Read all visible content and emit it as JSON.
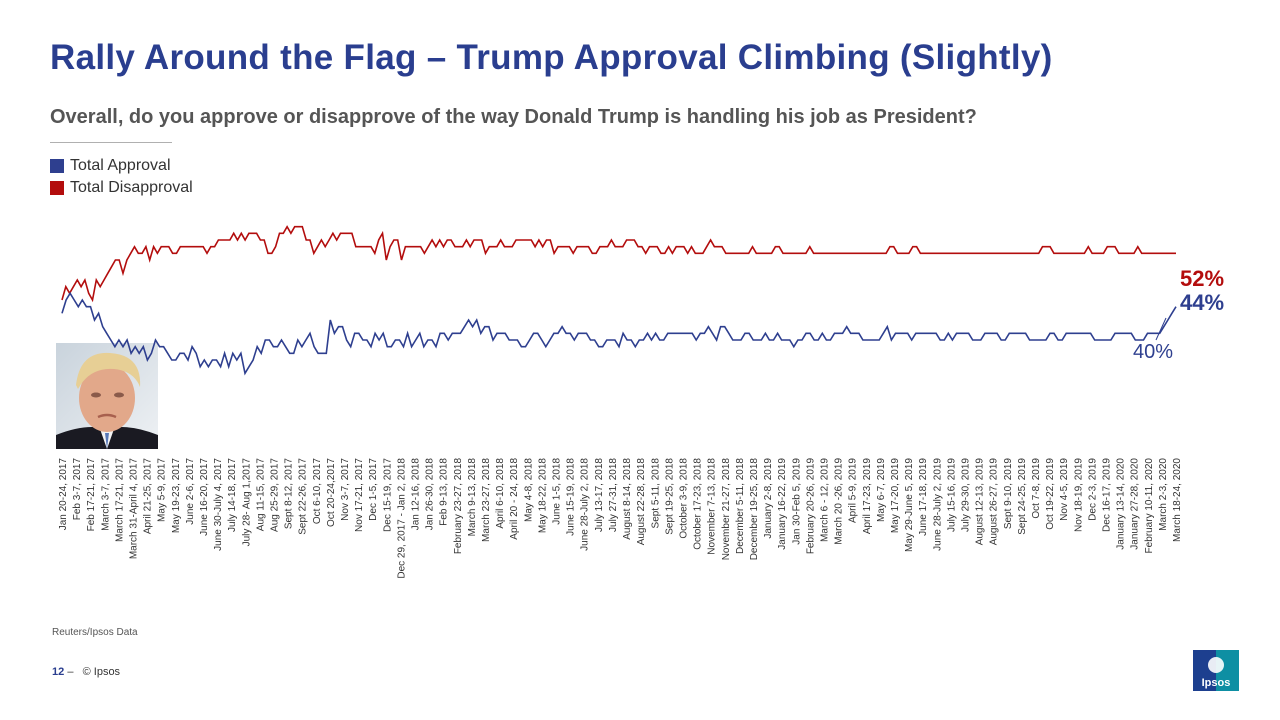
{
  "title": "Rally Around the Flag – Trump Approval Climbing (Slightly)",
  "subtitle": "Overall, do you approve or disapprove of the way Donald Trump is handling his job as President?",
  "colors": {
    "title": "#2a3e8f",
    "approval": "#2e3f8f",
    "disapproval": "#b30d0d"
  },
  "legend": [
    {
      "label": "Total Approval",
      "color": "#2e3f8f"
    },
    {
      "label": "Total Disapproval",
      "color": "#b30d0d"
    }
  ],
  "photo": {
    "icon": "trump-portrait"
  },
  "source": "Reuters/Ipsos Data",
  "footer": {
    "page": "12",
    "dash": "–",
    "copyright": "© Ipsos"
  },
  "logo": {
    "text": "Ipsos",
    "color": "#0e8fa3"
  },
  "chart_data": {
    "type": "line",
    "x_labels": [
      "Jan 20-24, 2017",
      "Feb 3-7, 2017",
      "Feb 17-21, 2017",
      "March 3-7, 2017",
      "March 17-21, 2017",
      "March 31-April 4, 2017",
      "April 21-25, 2017",
      "May 5-9, 2017",
      "May 19-23, 2017",
      "June 2-6, 2017",
      "June 16-20, 2017",
      "June 30-July 4, 2017",
      "July 14-18, 2017",
      "July 28- Aug 1,2017",
      "Aug 11-15, 2017",
      "Aug 25-29, 2017",
      "Sept 8-12, 2017",
      "Sept 22-26, 2017",
      "Oct 6-10, 2017",
      "Oct 20-24,2017",
      "Nov 3-7, 2017",
      "Nov 17-21, 2017",
      "Dec 1-5, 2017",
      "Dec 15-19, 2017",
      "Dec 29, 2017 - Jan 2, 2018",
      "Jan 12-16, 2018",
      "Jan 26-30, 2018",
      "Feb 9-13, 2018",
      "February 23-27, 2018",
      "March 9-13, 2018",
      "March 23-27, 2018",
      "April 6-10, 2018",
      "April 20 - 24, 2018",
      "May 4-8, 2018",
      "May 18-22, 2018",
      "June 1-5, 2018",
      "June 15-19, 2018",
      "June 28-July 2, 2018",
      "July 13-17, 2018",
      "July 27-31, 2018",
      "August 8-14, 2018",
      "August 22-28, 2018",
      "Sept 5-11, 2018",
      "Sept 19-25, 2018",
      "October 3-9, 2018",
      "October 17-23, 2018",
      "November 7-13, 2018",
      "November 21-27, 2018",
      "December 5-11, 2018",
      "December 19-25, 2018",
      "January 2-8, 2019",
      "January 16-22, 2019",
      "Jan 30-Feb 5, 2019",
      "February 20-26, 2019",
      "March 6 - 12, 2019",
      "March 20 -26, 2019",
      "April 5-9, 2019",
      "April 17-23, 2019",
      "May 6-7, 2019",
      "May 17-20, 2019",
      "May 29-June 5, 2019",
      "June 17-18, 2019",
      "June 28-July 2, 2019",
      "July 15-16, 2019",
      "July 29-30, 2019",
      "August 12-13, 2019",
      "August 26-27, 2019",
      "Sept 9-10, 2019",
      "Sept 24-25, 2019",
      "Oct 7-8, 2019",
      "Oct 19-22, 2019",
      "Nov 4-5, 2019",
      "Nov 18-19, 2019",
      "Dec 2-3, 2019",
      "Dec 16-17, 2019",
      "January 13-14, 2020",
      "January 27-28, 2020",
      "February 10-11, 2020",
      "March 2-3, 2020",
      "March 18-24, 2020"
    ],
    "series": [
      {
        "name": "Total Disapproval",
        "values": [
          45,
          47,
          46,
          47,
          48,
          47,
          48,
          46,
          45,
          48,
          47,
          48,
          49,
          50,
          51,
          51,
          49,
          51,
          52,
          53,
          52,
          52,
          53,
          51,
          53,
          52,
          53,
          53,
          53,
          52,
          52,
          53,
          53,
          53,
          53,
          53,
          53,
          53,
          52,
          53,
          53,
          54,
          54,
          54,
          54,
          55,
          54,
          55,
          54,
          55,
          55,
          55,
          54,
          54,
          52,
          52,
          53,
          55,
          55,
          56,
          55,
          56,
          56,
          56,
          54,
          54,
          52,
          53,
          54,
          53,
          54,
          55,
          54,
          55,
          55,
          55,
          55,
          53,
          53,
          53,
          53,
          53,
          52,
          54,
          55,
          51,
          53,
          54,
          54,
          51,
          53,
          53,
          53,
          53,
          53,
          52,
          53,
          54,
          53,
          54,
          53,
          54,
          54,
          53,
          53,
          53,
          54,
          53,
          54,
          54,
          54,
          52,
          53,
          53,
          53,
          54,
          53,
          53,
          53,
          54,
          54,
          54,
          54,
          54,
          53,
          54,
          53,
          54,
          54,
          52,
          53,
          53,
          53,
          53,
          52,
          53,
          53,
          53,
          53,
          52,
          52,
          53,
          53,
          53,
          54,
          53,
          53,
          53,
          54,
          54,
          54,
          53,
          53,
          52,
          53,
          53,
          53,
          52,
          52,
          53,
          52,
          53,
          53,
          53,
          52,
          53,
          52,
          52,
          52,
          53,
          54,
          53,
          53,
          53,
          52,
          52,
          52,
          52,
          52,
          52,
          52,
          53,
          52,
          52,
          52,
          52,
          52,
          53,
          53,
          52,
          52,
          52,
          52,
          52,
          52,
          52,
          53,
          52,
          52,
          52,
          52,
          52,
          52,
          52,
          52,
          52,
          52,
          52,
          52,
          52,
          52,
          52,
          52,
          52,
          52,
          52,
          52,
          53,
          53,
          52,
          52,
          52,
          52,
          53,
          53,
          52,
          52,
          52,
          52,
          52,
          52,
          52,
          52,
          52,
          52,
          52,
          52,
          52,
          52,
          52,
          52,
          52,
          52,
          52,
          52,
          52,
          52,
          52,
          52,
          52,
          52,
          52,
          52,
          52,
          52,
          52,
          52,
          53,
          53,
          53,
          52,
          52,
          52,
          52,
          52,
          52,
          52,
          52,
          52,
          53,
          52,
          52,
          52,
          52,
          53,
          53,
          53,
          52,
          52,
          52,
          52,
          52,
          53,
          52,
          52,
          52,
          52,
          52,
          52,
          52,
          52,
          52,
          52
        ]
      },
      {
        "name": "Total Approval",
        "values": [
          43,
          45,
          46,
          45,
          44,
          45,
          44,
          44,
          42,
          43,
          41,
          40,
          39,
          38,
          39,
          38,
          39,
          37,
          38,
          37,
          38,
          36,
          37,
          39,
          38,
          38,
          37,
          36,
          36,
          37,
          37,
          36,
          38,
          37,
          35,
          36,
          35,
          36,
          36,
          35,
          37,
          35,
          37,
          36,
          37,
          34,
          35,
          36,
          38,
          37,
          39,
          39,
          38,
          38,
          39,
          38,
          37,
          37,
          39,
          38,
          39,
          40,
          38,
          37,
          37,
          37,
          42,
          40,
          41,
          41,
          39,
          38,
          40,
          40,
          39,
          39,
          38,
          40,
          39,
          40,
          38,
          38,
          39,
          39,
          38,
          40,
          38,
          39,
          40,
          38,
          39,
          39,
          38,
          40,
          40,
          39,
          40,
          40,
          40,
          41,
          42,
          41,
          42,
          40,
          41,
          41,
          39,
          40,
          40,
          40,
          39,
          39,
          39,
          38,
          38,
          39,
          40,
          40,
          39,
          38,
          39,
          40,
          40,
          41,
          40,
          40,
          39,
          40,
          40,
          40,
          39,
          39,
          38,
          38,
          39,
          39,
          39,
          38,
          40,
          39,
          39,
          38,
          39,
          39,
          40,
          39,
          40,
          39,
          39,
          40,
          40,
          40,
          40,
          40,
          40,
          40,
          39,
          40,
          40,
          41,
          40,
          39,
          41,
          41,
          40,
          39,
          39,
          39,
          40,
          40,
          39,
          39,
          39,
          40,
          39,
          39,
          40,
          39,
          39,
          39,
          38,
          39,
          39,
          40,
          40,
          39,
          39,
          40,
          39,
          39,
          40,
          40,
          40,
          41,
          40,
          40,
          40,
          39,
          39,
          39,
          39,
          39,
          40,
          41,
          39,
          40,
          40,
          40,
          40,
          39,
          40,
          40,
          40,
          40,
          40,
          40,
          39,
          39,
          40,
          39,
          40,
          40,
          40,
          40,
          39,
          39,
          39,
          40,
          40,
          40,
          40,
          39,
          39,
          40,
          40,
          40,
          40,
          40,
          39,
          39,
          39,
          39,
          39,
          40,
          40,
          39,
          39,
          40,
          40,
          40,
          40,
          40,
          40,
          40,
          39,
          39,
          39,
          39,
          39,
          40,
          40,
          40,
          40,
          40,
          39,
          39,
          39,
          40,
          40,
          40,
          40,
          41,
          42,
          43,
          44
        ]
      }
    ],
    "end_labels": {
      "disapproval": "52%",
      "approval": "44%",
      "callout": "40%"
    },
    "ylim": [
      30,
      60
    ],
    "legend_position": "top-left"
  }
}
